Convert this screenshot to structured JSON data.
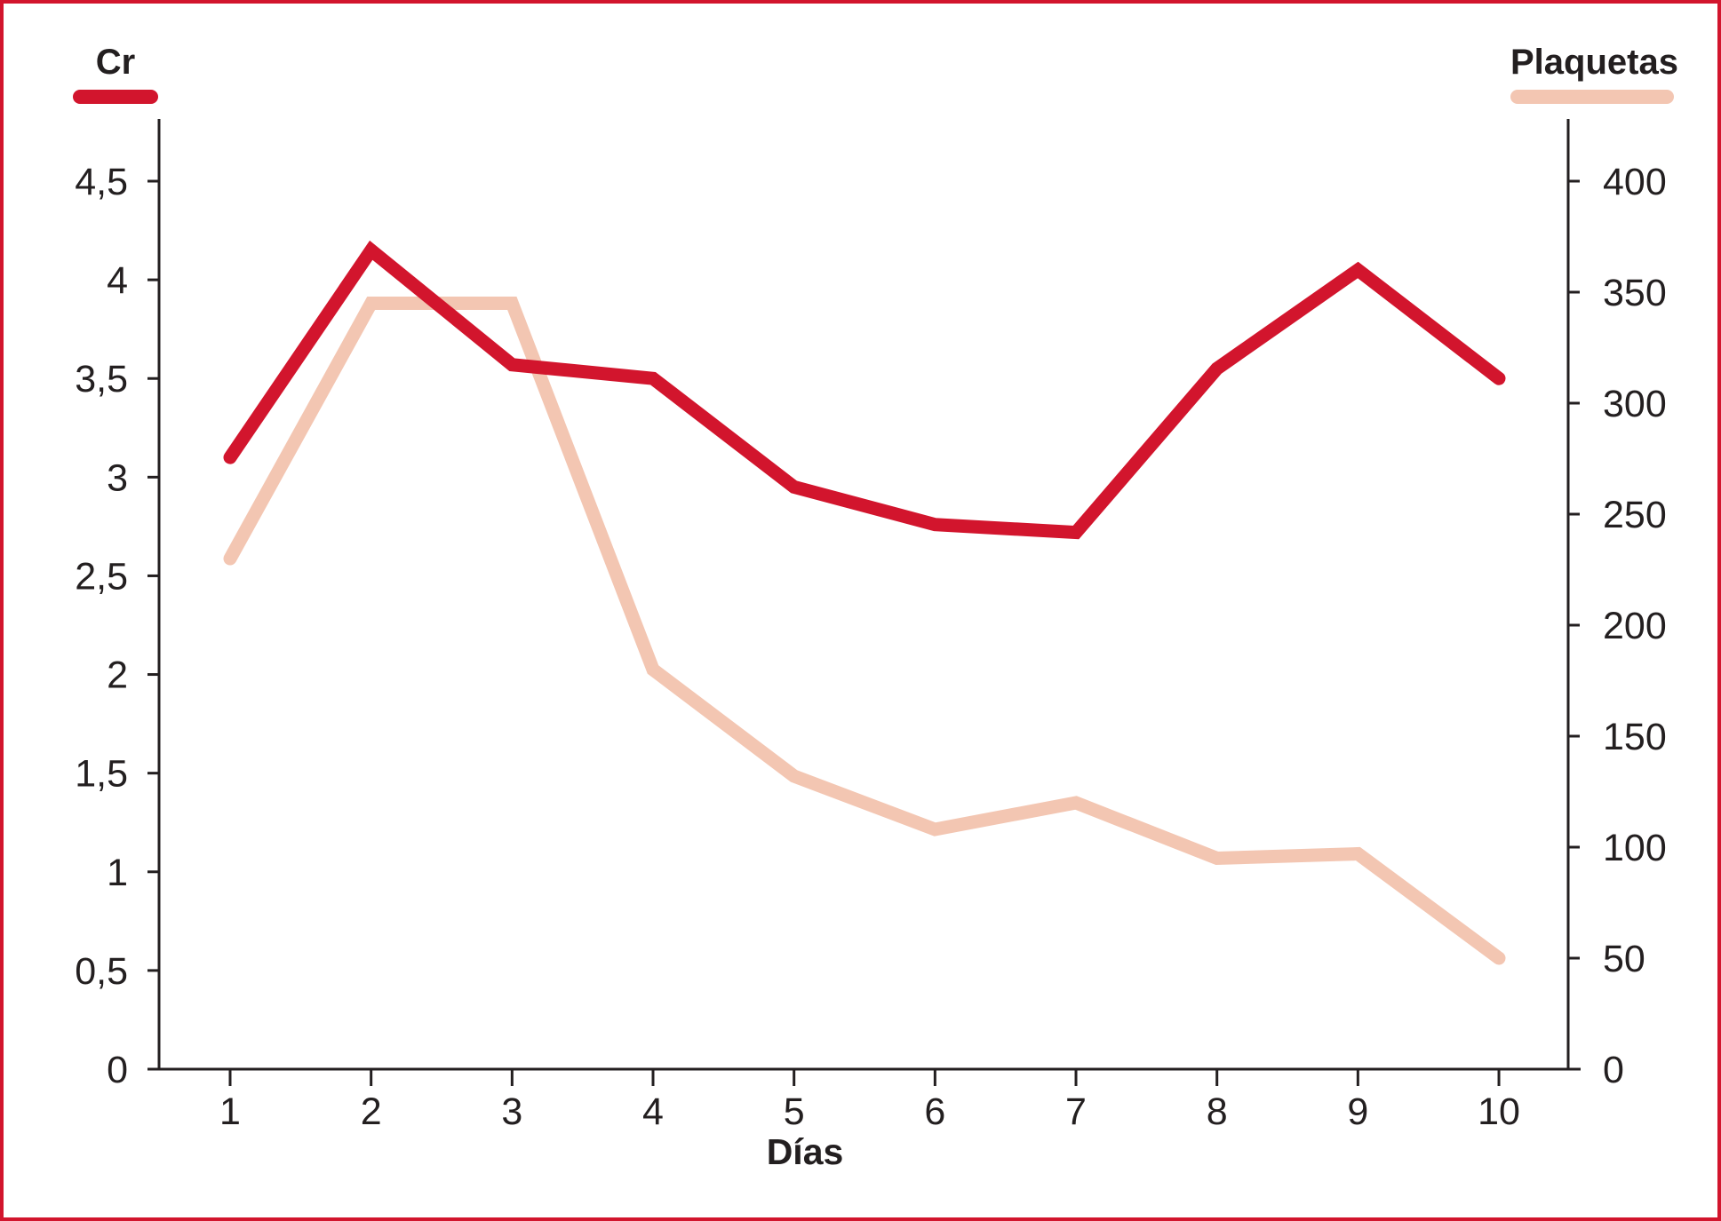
{
  "legend": {
    "cr_label": "Cr",
    "plaquetas_label": "Plaquetas"
  },
  "colors": {
    "cr_line": "#d2152d",
    "plaquetas_line": "#f3c6b2",
    "axis": "#231f20",
    "text": "#231f20",
    "frame_border": "#d2152d"
  },
  "chart_data": {
    "type": "line",
    "x": [
      1,
      2,
      3,
      4,
      5,
      6,
      7,
      8,
      9,
      10
    ],
    "x_tick_labels": [
      "1",
      "2",
      "3",
      "4",
      "5",
      "6",
      "7",
      "8",
      "9",
      "10"
    ],
    "xlabel": "Días",
    "series": [
      {
        "name": "Plaquetas",
        "axis": "right",
        "color": "#f3c6b2",
        "values": [
          230,
          345,
          345,
          180,
          132,
          108,
          120,
          95,
          97,
          50
        ]
      },
      {
        "name": "Cr",
        "axis": "left",
        "color": "#d2152d",
        "values": [
          3.1,
          4.15,
          3.57,
          3.5,
          2.95,
          2.76,
          2.72,
          3.55,
          4.05,
          3.5
        ]
      }
    ],
    "left_axis": {
      "title": "Cr",
      "min": 0,
      "max": 4.5,
      "step": 0.5,
      "tick_labels": [
        "0",
        "0,5",
        "1",
        "1,5",
        "2",
        "2,5",
        "3",
        "3,5",
        "4",
        "4,5"
      ]
    },
    "right_axis": {
      "title": "Plaquetas",
      "min": 0,
      "max": 400,
      "step": 50,
      "tick_labels": [
        "0",
        "50",
        "100",
        "150",
        "200",
        "250",
        "300",
        "350",
        "400"
      ]
    },
    "grid": false,
    "legend_position": "top"
  }
}
